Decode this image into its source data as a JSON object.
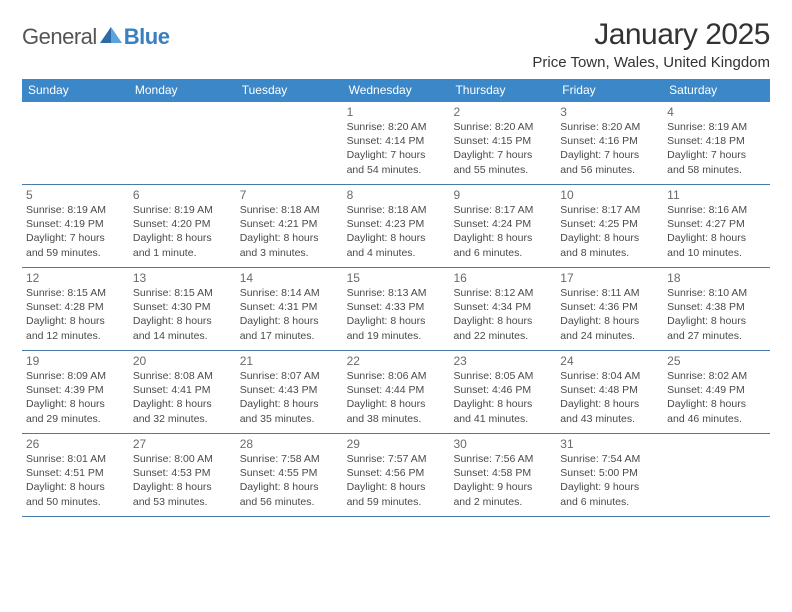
{
  "logo": {
    "general": "General",
    "blue": "Blue"
  },
  "title": "January 2025",
  "location": "Price Town, Wales, United Kingdom",
  "colors": {
    "header_bg": "#3b87c8",
    "header_text": "#ffffff",
    "row_border": "#4a7aa8",
    "shaded_bg": "#eef3f7",
    "body_text": "#4a4a4a",
    "daynum_text": "#6a6a6a"
  },
  "day_headers": [
    "Sunday",
    "Monday",
    "Tuesday",
    "Wednesday",
    "Thursday",
    "Friday",
    "Saturday"
  ],
  "weeks": [
    [
      {
        "num": "",
        "lines": []
      },
      {
        "num": "",
        "lines": []
      },
      {
        "num": "",
        "lines": []
      },
      {
        "num": "1",
        "lines": [
          "Sunrise: 8:20 AM",
          "Sunset: 4:14 PM",
          "Daylight: 7 hours",
          "and 54 minutes."
        ]
      },
      {
        "num": "2",
        "lines": [
          "Sunrise: 8:20 AM",
          "Sunset: 4:15 PM",
          "Daylight: 7 hours",
          "and 55 minutes."
        ]
      },
      {
        "num": "3",
        "lines": [
          "Sunrise: 8:20 AM",
          "Sunset: 4:16 PM",
          "Daylight: 7 hours",
          "and 56 minutes."
        ]
      },
      {
        "num": "4",
        "lines": [
          "Sunrise: 8:19 AM",
          "Sunset: 4:18 PM",
          "Daylight: 7 hours",
          "and 58 minutes."
        ]
      }
    ],
    [
      {
        "num": "5",
        "lines": [
          "Sunrise: 8:19 AM",
          "Sunset: 4:19 PM",
          "Daylight: 7 hours",
          "and 59 minutes."
        ]
      },
      {
        "num": "6",
        "lines": [
          "Sunrise: 8:19 AM",
          "Sunset: 4:20 PM",
          "Daylight: 8 hours",
          "and 1 minute."
        ]
      },
      {
        "num": "7",
        "lines": [
          "Sunrise: 8:18 AM",
          "Sunset: 4:21 PM",
          "Daylight: 8 hours",
          "and 3 minutes."
        ]
      },
      {
        "num": "8",
        "lines": [
          "Sunrise: 8:18 AM",
          "Sunset: 4:23 PM",
          "Daylight: 8 hours",
          "and 4 minutes."
        ]
      },
      {
        "num": "9",
        "lines": [
          "Sunrise: 8:17 AM",
          "Sunset: 4:24 PM",
          "Daylight: 8 hours",
          "and 6 minutes."
        ]
      },
      {
        "num": "10",
        "lines": [
          "Sunrise: 8:17 AM",
          "Sunset: 4:25 PM",
          "Daylight: 8 hours",
          "and 8 minutes."
        ]
      },
      {
        "num": "11",
        "lines": [
          "Sunrise: 8:16 AM",
          "Sunset: 4:27 PM",
          "Daylight: 8 hours",
          "and 10 minutes."
        ]
      }
    ],
    [
      {
        "num": "12",
        "lines": [
          "Sunrise: 8:15 AM",
          "Sunset: 4:28 PM",
          "Daylight: 8 hours",
          "and 12 minutes."
        ]
      },
      {
        "num": "13",
        "lines": [
          "Sunrise: 8:15 AM",
          "Sunset: 4:30 PM",
          "Daylight: 8 hours",
          "and 14 minutes."
        ]
      },
      {
        "num": "14",
        "lines": [
          "Sunrise: 8:14 AM",
          "Sunset: 4:31 PM",
          "Daylight: 8 hours",
          "and 17 minutes."
        ]
      },
      {
        "num": "15",
        "lines": [
          "Sunrise: 8:13 AM",
          "Sunset: 4:33 PM",
          "Daylight: 8 hours",
          "and 19 minutes."
        ]
      },
      {
        "num": "16",
        "lines": [
          "Sunrise: 8:12 AM",
          "Sunset: 4:34 PM",
          "Daylight: 8 hours",
          "and 22 minutes."
        ]
      },
      {
        "num": "17",
        "lines": [
          "Sunrise: 8:11 AM",
          "Sunset: 4:36 PM",
          "Daylight: 8 hours",
          "and 24 minutes."
        ]
      },
      {
        "num": "18",
        "lines": [
          "Sunrise: 8:10 AM",
          "Sunset: 4:38 PM",
          "Daylight: 8 hours",
          "and 27 minutes."
        ]
      }
    ],
    [
      {
        "num": "19",
        "lines": [
          "Sunrise: 8:09 AM",
          "Sunset: 4:39 PM",
          "Daylight: 8 hours",
          "and 29 minutes."
        ]
      },
      {
        "num": "20",
        "lines": [
          "Sunrise: 8:08 AM",
          "Sunset: 4:41 PM",
          "Daylight: 8 hours",
          "and 32 minutes."
        ]
      },
      {
        "num": "21",
        "lines": [
          "Sunrise: 8:07 AM",
          "Sunset: 4:43 PM",
          "Daylight: 8 hours",
          "and 35 minutes."
        ]
      },
      {
        "num": "22",
        "lines": [
          "Sunrise: 8:06 AM",
          "Sunset: 4:44 PM",
          "Daylight: 8 hours",
          "and 38 minutes."
        ]
      },
      {
        "num": "23",
        "lines": [
          "Sunrise: 8:05 AM",
          "Sunset: 4:46 PM",
          "Daylight: 8 hours",
          "and 41 minutes."
        ]
      },
      {
        "num": "24",
        "lines": [
          "Sunrise: 8:04 AM",
          "Sunset: 4:48 PM",
          "Daylight: 8 hours",
          "and 43 minutes."
        ]
      },
      {
        "num": "25",
        "lines": [
          "Sunrise: 8:02 AM",
          "Sunset: 4:49 PM",
          "Daylight: 8 hours",
          "and 46 minutes."
        ]
      }
    ],
    [
      {
        "num": "26",
        "lines": [
          "Sunrise: 8:01 AM",
          "Sunset: 4:51 PM",
          "Daylight: 8 hours",
          "and 50 minutes."
        ]
      },
      {
        "num": "27",
        "lines": [
          "Sunrise: 8:00 AM",
          "Sunset: 4:53 PM",
          "Daylight: 8 hours",
          "and 53 minutes."
        ]
      },
      {
        "num": "28",
        "lines": [
          "Sunrise: 7:58 AM",
          "Sunset: 4:55 PM",
          "Daylight: 8 hours",
          "and 56 minutes."
        ]
      },
      {
        "num": "29",
        "lines": [
          "Sunrise: 7:57 AM",
          "Sunset: 4:56 PM",
          "Daylight: 8 hours",
          "and 59 minutes."
        ]
      },
      {
        "num": "30",
        "lines": [
          "Sunrise: 7:56 AM",
          "Sunset: 4:58 PM",
          "Daylight: 9 hours",
          "and 2 minutes."
        ]
      },
      {
        "num": "31",
        "lines": [
          "Sunrise: 7:54 AM",
          "Sunset: 5:00 PM",
          "Daylight: 9 hours",
          "and 6 minutes."
        ]
      },
      {
        "num": "",
        "lines": []
      }
    ]
  ]
}
